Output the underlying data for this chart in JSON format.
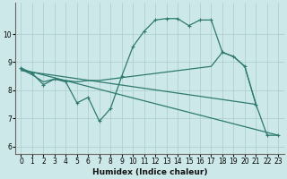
{
  "xlabel": "Humidex (Indice chaleur)",
  "bg_color": "#cde8e8",
  "line_color": "#2d7a6e",
  "grid_color": "#aacccc",
  "xlim": [
    -0.5,
    23.5
  ],
  "ylim": [
    5.75,
    11.1
  ],
  "xticks": [
    0,
    1,
    2,
    3,
    4,
    5,
    6,
    7,
    8,
    9,
    10,
    11,
    12,
    13,
    14,
    15,
    16,
    17,
    18,
    19,
    20,
    21,
    22,
    23
  ],
  "yticks": [
    6,
    7,
    8,
    9,
    10
  ],
  "curve_main": {
    "x": [
      0,
      1,
      2,
      3,
      4,
      5,
      6,
      7,
      8,
      9,
      10,
      11,
      12,
      13,
      14,
      15,
      16,
      17,
      18,
      19,
      20,
      21,
      22,
      23
    ],
    "y": [
      8.8,
      8.6,
      8.2,
      8.4,
      8.3,
      7.55,
      7.75,
      6.9,
      7.35,
      8.5,
      9.55,
      10.1,
      10.5,
      10.55,
      10.55,
      10.3,
      10.5,
      10.5,
      9.35,
      9.2,
      8.85,
      7.5,
      6.4,
      6.4
    ]
  },
  "curve_smooth": {
    "x": [
      0,
      1,
      2,
      3,
      4,
      5,
      6,
      7,
      8,
      9,
      10,
      11,
      12,
      13,
      14,
      15,
      16,
      17,
      18,
      19,
      20,
      21
    ],
    "y": [
      8.75,
      8.55,
      8.3,
      8.4,
      8.35,
      8.3,
      8.35,
      8.35,
      8.4,
      8.45,
      8.5,
      8.55,
      8.6,
      8.65,
      8.7,
      8.75,
      8.8,
      8.85,
      9.35,
      9.2,
      8.85,
      7.5
    ]
  },
  "line_diag": {
    "x": [
      0,
      23
    ],
    "y": [
      8.75,
      6.4
    ]
  },
  "line_diag2": {
    "x": [
      0,
      21
    ],
    "y": [
      8.7,
      7.5
    ]
  }
}
